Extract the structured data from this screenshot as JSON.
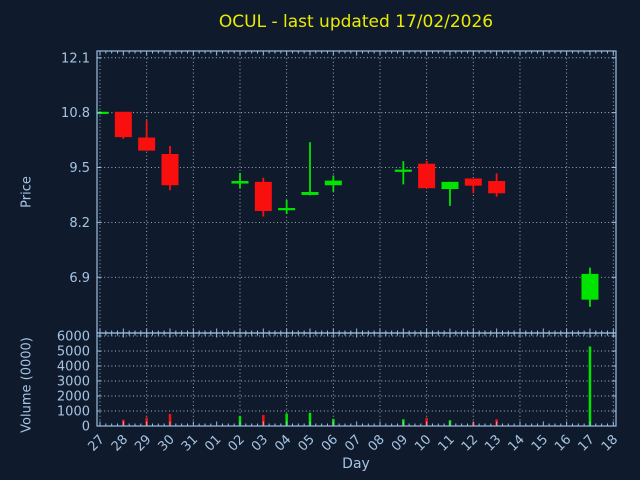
{
  "colors": {
    "background": "#0f1b2c",
    "frame": "#9cbede",
    "text": "#a6c3e2",
    "grid": "#cdd6df",
    "title": "#ebeb00",
    "up": "#00e400",
    "down": "#fa0f0f"
  },
  "chart_data": [
    {
      "type": "candlestick",
      "title": "OCUL - last updated 17/02/2026",
      "ylabel": "Price",
      "yticks": [
        6.9,
        8.2,
        9.5,
        10.8,
        12.1
      ],
      "ylim": [
        5.58,
        12.26
      ],
      "grid": "dotted; horizontal at each ytick, vertical every 2nd day",
      "legend": "none",
      "categories": [
        "27",
        "28",
        "29",
        "30",
        "31",
        "01",
        "02",
        "03",
        "04",
        "05",
        "06",
        "07",
        "08",
        "09",
        "10",
        "11",
        "12",
        "13",
        "14",
        "15",
        "16",
        "17",
        "18"
      ],
      "ohlc": [
        {
          "day": "27",
          "open": 10.78,
          "high": 10.83,
          "low": 10.76,
          "close": 10.82
        },
        {
          "day": "28",
          "open": 10.82,
          "high": 10.82,
          "low": 10.18,
          "close": 10.22
        },
        {
          "day": "29",
          "open": 10.21,
          "high": 10.61,
          "low": 9.9,
          "close": 9.9
        },
        {
          "day": "30",
          "open": 9.82,
          "high": 10.01,
          "low": 8.96,
          "close": 9.08
        },
        {
          "day": "02",
          "open": 9.12,
          "high": 9.37,
          "low": 9.01,
          "close": 9.18
        },
        {
          "day": "03",
          "open": 9.16,
          "high": 9.26,
          "low": 8.34,
          "close": 8.47
        },
        {
          "day": "04",
          "open": 8.5,
          "high": 8.73,
          "low": 8.4,
          "close": 8.54
        },
        {
          "day": "05",
          "open": 8.85,
          "high": 10.1,
          "low": 8.84,
          "close": 8.92
        },
        {
          "day": "06",
          "open": 9.08,
          "high": 9.31,
          "low": 8.93,
          "close": 9.19
        },
        {
          "day": "09",
          "open": 9.41,
          "high": 9.65,
          "low": 9.1,
          "close": 9.45
        },
        {
          "day": "10",
          "open": 9.59,
          "high": 9.66,
          "low": 9.01,
          "close": 9.01
        },
        {
          "day": "11",
          "open": 8.99,
          "high": 9.16,
          "low": 8.59,
          "close": 9.16
        },
        {
          "day": "12",
          "open": 9.24,
          "high": 9.24,
          "low": 8.89,
          "close": 9.07
        },
        {
          "day": "13",
          "open": 9.18,
          "high": 9.36,
          "low": 8.81,
          "close": 8.89
        },
        {
          "day": "17",
          "open": 6.37,
          "high": 7.13,
          "low": 6.2,
          "close": 6.98
        }
      ]
    },
    {
      "type": "bar",
      "ylabel": "Volume (0000)",
      "xlabel": "Day",
      "yticks": [
        0,
        1000,
        2000,
        3000,
        4000,
        5000,
        6000
      ],
      "ylim": [
        0,
        6200
      ],
      "categories": [
        "27",
        "28",
        "29",
        "30",
        "31",
        "01",
        "02",
        "03",
        "04",
        "05",
        "06",
        "07",
        "08",
        "09",
        "10",
        "11",
        "12",
        "13",
        "14",
        "15",
        "16",
        "17",
        "18"
      ],
      "bars": [
        {
          "day": "27",
          "value": 40,
          "direction": "up"
        },
        {
          "day": "28",
          "value": 420,
          "direction": "down"
        },
        {
          "day": "29",
          "value": 560,
          "direction": "down"
        },
        {
          "day": "30",
          "value": 800,
          "direction": "down"
        },
        {
          "day": "02",
          "value": 650,
          "direction": "up"
        },
        {
          "day": "03",
          "value": 730,
          "direction": "down"
        },
        {
          "day": "04",
          "value": 820,
          "direction": "up"
        },
        {
          "day": "05",
          "value": 880,
          "direction": "up"
        },
        {
          "day": "06",
          "value": 480,
          "direction": "up"
        },
        {
          "day": "09",
          "value": 450,
          "direction": "up"
        },
        {
          "day": "10",
          "value": 540,
          "direction": "down"
        },
        {
          "day": "11",
          "value": 390,
          "direction": "up"
        },
        {
          "day": "12",
          "value": 240,
          "direction": "down"
        },
        {
          "day": "13",
          "value": 450,
          "direction": "down"
        },
        {
          "day": "17",
          "value": 5300,
          "direction": "up"
        }
      ]
    }
  ]
}
